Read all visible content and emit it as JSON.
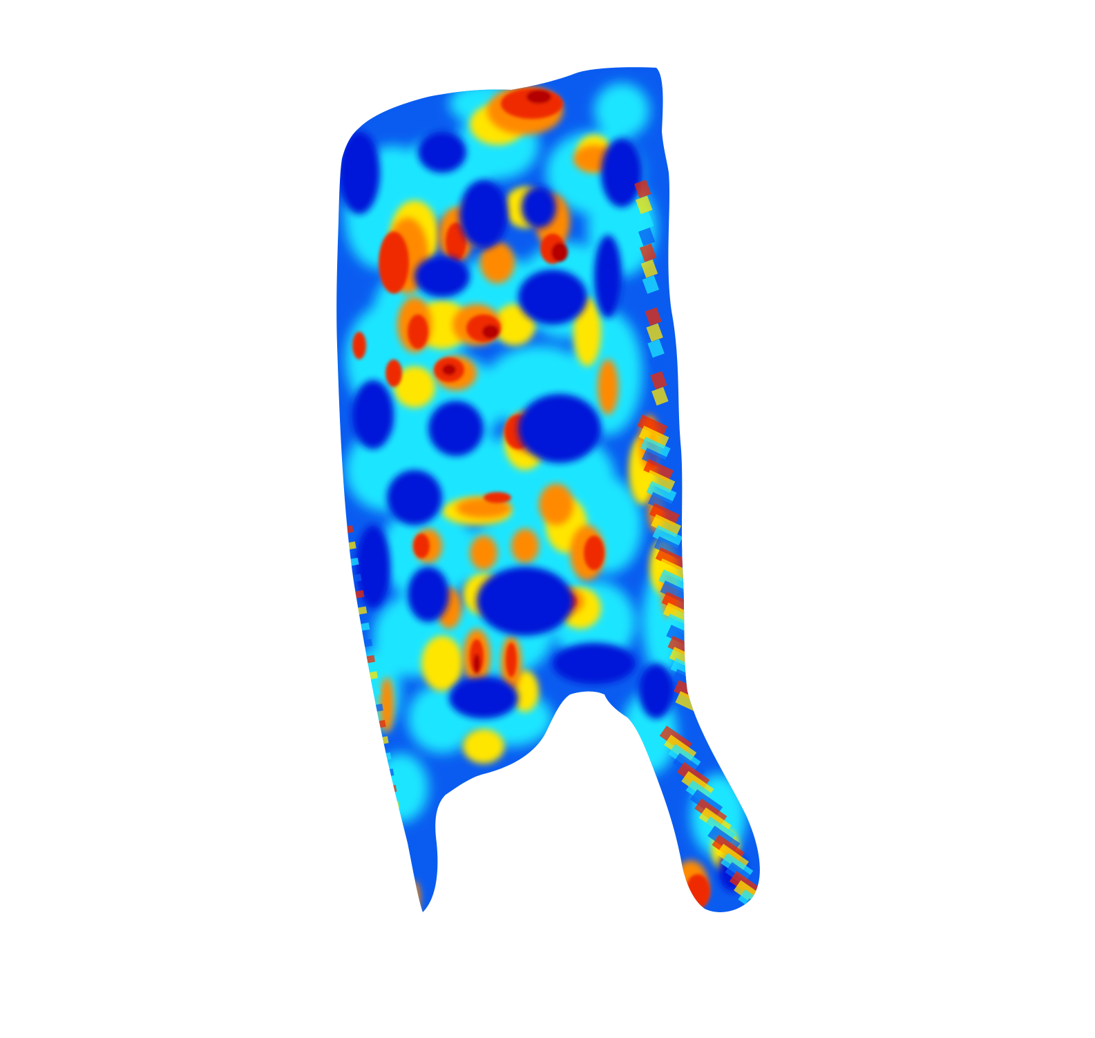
{
  "figure": {
    "colormap": "jet",
    "background_color": "#ffffff",
    "colors": {
      "deep_blue": "#0018d8",
      "blue": "#0a5cf0",
      "cyan": "#1ee6ff",
      "light_cyan": "#7ff7ff",
      "yellow": "#ffe600",
      "orange": "#ff8a00",
      "red": "#ef2a00",
      "dark_red": "#b40000"
    }
  }
}
